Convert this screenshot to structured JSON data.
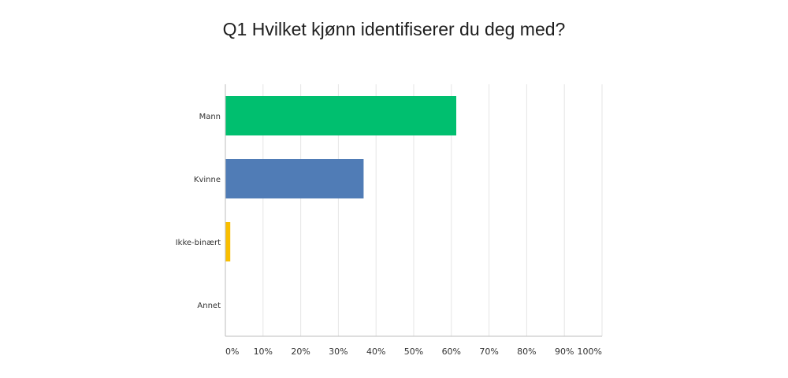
{
  "chart_data": {
    "type": "bar",
    "orientation": "horizontal",
    "title": "Q1 Hvilket kjønn identifiserer du deg med?",
    "categories": [
      "Mann",
      "Kvinne",
      "Ikke-binært",
      "Annet"
    ],
    "values": [
      61.3,
      36.7,
      1.3,
      0
    ],
    "colors": [
      "#00bf6f",
      "#507cb6",
      "#f9be00",
      "#6bc8cd"
    ],
    "xlim": [
      0,
      100
    ],
    "xticks": [
      0,
      10,
      20,
      30,
      40,
      50,
      60,
      70,
      80,
      90,
      100
    ],
    "xtick_labels": [
      "0%",
      "10%",
      "20%",
      "30%",
      "40%",
      "50%",
      "60%",
      "70%",
      "80%",
      "90%",
      "100%"
    ],
    "grid": true,
    "xlabel": "",
    "ylabel": ""
  }
}
